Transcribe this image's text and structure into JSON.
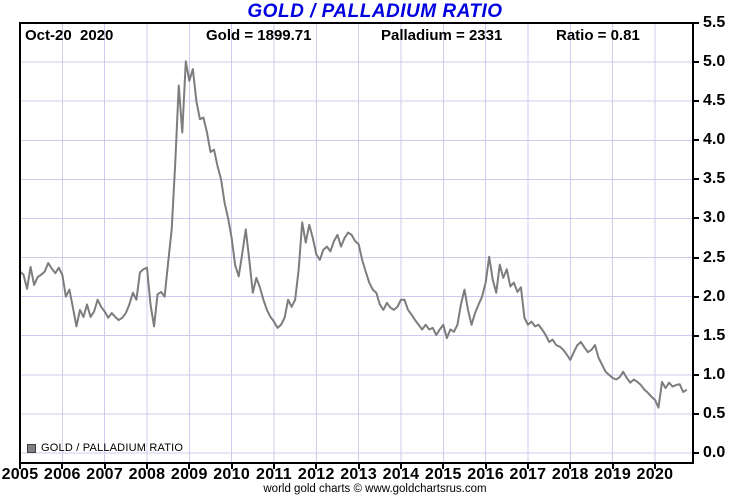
{
  "title": "GOLD / PALLADIUM RATIO",
  "header": {
    "date_label": "Oct-20  2020",
    "gold_label": "Gold = 1899.71",
    "palladium_label": "Palladium = 2331",
    "ratio_label": "Ratio = 0.81"
  },
  "legend_label": "GOLD / PALLADIUM RATIO",
  "footer": "world gold charts © www.goldchartsrus.com",
  "colors": {
    "title": "#0000e0",
    "series": "#7d7d7d",
    "grid": "#ccccee",
    "axis": "#000000",
    "legend_swatch": "#808080"
  },
  "chart_data": {
    "type": "line",
    "title": "GOLD / PALLADIUM RATIO",
    "annotations": {
      "date": "Oct-20 2020",
      "gold": 1899.71,
      "palladium": 2331,
      "ratio": 0.81
    },
    "grid": true,
    "legend_position": "bottom-left",
    "x_axis": {
      "tick_labels": [
        "2005",
        "2006",
        "2007",
        "2008",
        "2009",
        "2010",
        "2011",
        "2012",
        "2013",
        "2014",
        "2015",
        "2016",
        "2017",
        "2018",
        "2019",
        "2020"
      ],
      "tick_values": [
        2005,
        2006,
        2007,
        2008,
        2009,
        2010,
        2011,
        2012,
        2013,
        2014,
        2015,
        2016,
        2017,
        2018,
        2019,
        2020
      ],
      "range": [
        2005,
        2020.875
      ]
    },
    "y_axis": {
      "position": "right",
      "tick_labels": [
        "0.0",
        "0.5",
        "1.0",
        "1.5",
        "2.0",
        "2.5",
        "3.0",
        "3.5",
        "4.0",
        "4.5",
        "5.0",
        "5.5"
      ],
      "tick_values": [
        0,
        0.5,
        1,
        1.5,
        2,
        2.5,
        3,
        3.5,
        4,
        4.5,
        5,
        5.5
      ],
      "range": [
        0,
        5.5
      ],
      "gridline_max": 5.0
    },
    "series": [
      {
        "name": "GOLD / PALLADIUM RATIO",
        "color": "#7d7d7d",
        "start_year": 2005,
        "interval_months": 1,
        "values": [
          2.32,
          2.28,
          2.1,
          2.38,
          2.15,
          2.25,
          2.28,
          2.32,
          2.43,
          2.36,
          2.3,
          2.37,
          2.28,
          2.0,
          2.09,
          1.86,
          1.62,
          1.83,
          1.74,
          1.9,
          1.74,
          1.81,
          1.96,
          1.87,
          1.81,
          1.73,
          1.79,
          1.74,
          1.7,
          1.73,
          1.79,
          1.9,
          2.05,
          1.96,
          2.31,
          2.35,
          2.37,
          1.9,
          1.62,
          2.03,
          2.06,
          2.0,
          2.44,
          2.86,
          3.7,
          4.7,
          4.1,
          5.01,
          4.76,
          4.91,
          4.5,
          4.27,
          4.29,
          4.1,
          3.85,
          3.88,
          3.67,
          3.5,
          3.2,
          3.0,
          2.75,
          2.4,
          2.26,
          2.55,
          2.86,
          2.47,
          2.05,
          2.24,
          2.12,
          1.96,
          1.83,
          1.74,
          1.68,
          1.6,
          1.64,
          1.73,
          1.96,
          1.87,
          1.96,
          2.35,
          2.95,
          2.69,
          2.92,
          2.75,
          2.54,
          2.47,
          2.6,
          2.64,
          2.58,
          2.71,
          2.79,
          2.64,
          2.75,
          2.82,
          2.79,
          2.71,
          2.67,
          2.47,
          2.32,
          2.18,
          2.09,
          2.05,
          1.9,
          1.83,
          1.92,
          1.86,
          1.83,
          1.87,
          1.96,
          1.96,
          1.83,
          1.77,
          1.7,
          1.64,
          1.58,
          1.64,
          1.58,
          1.6,
          1.51,
          1.58,
          1.64,
          1.47,
          1.58,
          1.55,
          1.64,
          1.9,
          2.09,
          1.83,
          1.64,
          1.79,
          1.9,
          2.0,
          2.18,
          2.51,
          2.22,
          2.05,
          2.41,
          2.24,
          2.35,
          2.13,
          2.18,
          2.06,
          2.12,
          1.73,
          1.64,
          1.68,
          1.62,
          1.64,
          1.58,
          1.51,
          1.42,
          1.45,
          1.38,
          1.36,
          1.32,
          1.26,
          1.19,
          1.29,
          1.38,
          1.42,
          1.35,
          1.29,
          1.32,
          1.38,
          1.22,
          1.13,
          1.04,
          1.0,
          0.96,
          0.94,
          0.97,
          1.04,
          0.96,
          0.9,
          0.94,
          0.91,
          0.87,
          0.81,
          0.77,
          0.72,
          0.68,
          0.58,
          0.91,
          0.83,
          0.9,
          0.85,
          0.87,
          0.88,
          0.78,
          0.81
        ]
      }
    ]
  }
}
